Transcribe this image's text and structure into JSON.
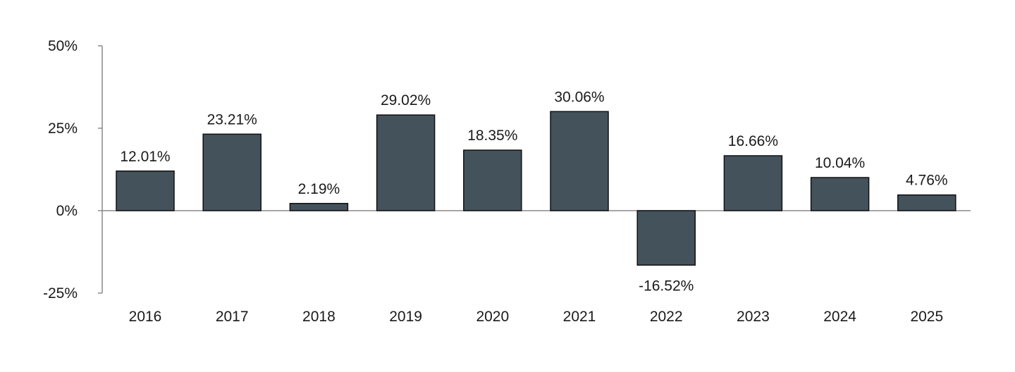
{
  "chart_data": {
    "type": "bar",
    "title": "",
    "xlabel": "",
    "ylabel": "",
    "categories": [
      "2016",
      "2017",
      "2018",
      "2019",
      "2020",
      "2021",
      "2022",
      "2023",
      "2024",
      "2025"
    ],
    "values": [
      12.01,
      23.21,
      2.19,
      29.02,
      18.35,
      30.06,
      -16.52,
      16.66,
      10.04,
      4.76
    ],
    "value_labels": [
      "12.01%",
      "23.21%",
      "2.19%",
      "29.02%",
      "18.35%",
      "30.06%",
      "-16.52%",
      "16.66%",
      "10.04%",
      "4.76%"
    ],
    "ylim": [
      -25,
      50
    ],
    "yticks": [
      50,
      25,
      0,
      -25
    ],
    "ytick_labels": [
      "50%",
      "25%",
      "0%",
      "-25%"
    ],
    "grid": false,
    "legend": "none",
    "bar_color": "#44525c",
    "bar_border_color": "#111111",
    "axis_color": "#8a8a8a"
  }
}
